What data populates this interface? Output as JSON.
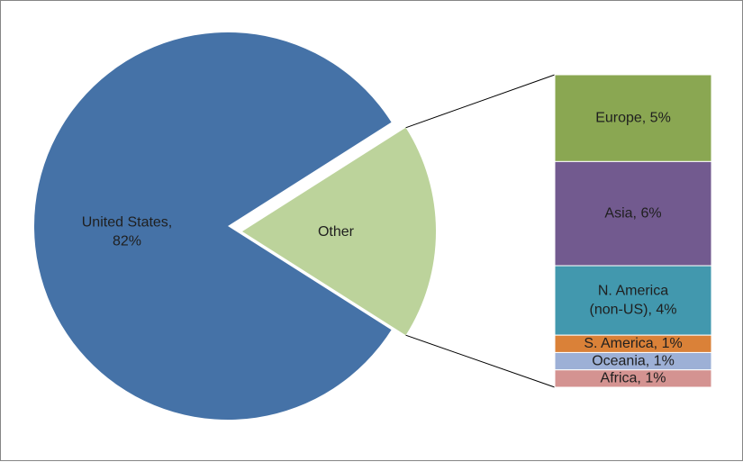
{
  "chart_data": {
    "type": "bar-of-pie",
    "pie": {
      "slices": [
        {
          "name": "United States",
          "value": 82,
          "label_lines": [
            "United States,",
            "82%"
          ],
          "color": "#4572A7"
        },
        {
          "name": "Other",
          "value": 18,
          "label_lines": [
            "Other"
          ],
          "color": "#BCD39B"
        }
      ]
    },
    "bar": {
      "segments": [
        {
          "name": "Europe",
          "value": 5,
          "label_lines": [
            "Europe, 5%"
          ],
          "color": "#8AA752"
        },
        {
          "name": "Asia",
          "value": 6,
          "label_lines": [
            "Asia, 6%"
          ],
          "color": "#725A8F"
        },
        {
          "name": "N. America (non-US)",
          "value": 4,
          "label_lines": [
            "N. America",
            "(non-US), 4%"
          ],
          "color": "#4298AE"
        },
        {
          "name": "S. America",
          "value": 1,
          "label_lines": [
            "S. America, 1%"
          ],
          "color": "#DA8138"
        },
        {
          "name": "Oceania",
          "value": 1,
          "label_lines": [
            "Oceania, 1%"
          ],
          "color": "#9DB0D6"
        },
        {
          "name": "Africa",
          "value": 1,
          "label_lines": [
            "Africa, 1%"
          ],
          "color": "#D49391"
        }
      ]
    },
    "connector_color": "#000000",
    "legend": "none",
    "grid": false
  }
}
